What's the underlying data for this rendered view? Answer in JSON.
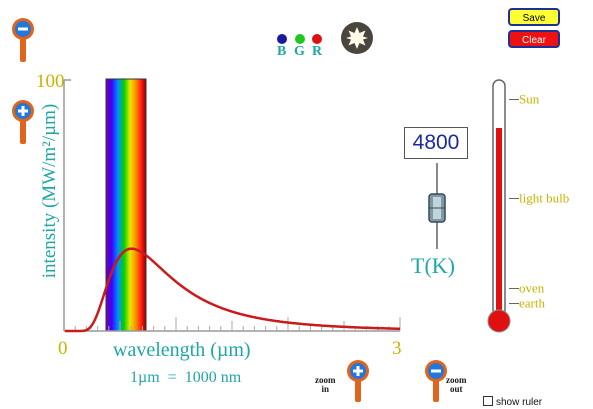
{
  "toolbar": {
    "save_label": "Save",
    "clear_label": "Clear"
  },
  "color_sensor": {
    "b_label": "B",
    "g_label": "G",
    "r_label": "R"
  },
  "graph": {
    "y_max_label": "100",
    "y_axis_label": "intensity (MW/m²/µm)",
    "x_min_label": "0",
    "x_max_label": "3",
    "x_axis_label": "wavelength (µm)",
    "unit_note": "1µm  =  1000 nm"
  },
  "temperature": {
    "value": "4800",
    "label": "T(K)"
  },
  "thermometer": {
    "marks": [
      {
        "label": "Sun"
      },
      {
        "label": "light bulb"
      },
      {
        "label": "oven"
      },
      {
        "label": "earth"
      }
    ]
  },
  "zoom": {
    "in_label_1": "zoom",
    "in_label_2": "in",
    "out_label_1": "zoom",
    "out_label_2": "out"
  },
  "ruler": {
    "label": "show ruler"
  },
  "colors": {
    "teal": "#1fa6a6",
    "gold": "#c8b400",
    "curve": "#cc1a1a",
    "button_yellow": "#ffff33",
    "button_red": "#ee1111"
  }
}
